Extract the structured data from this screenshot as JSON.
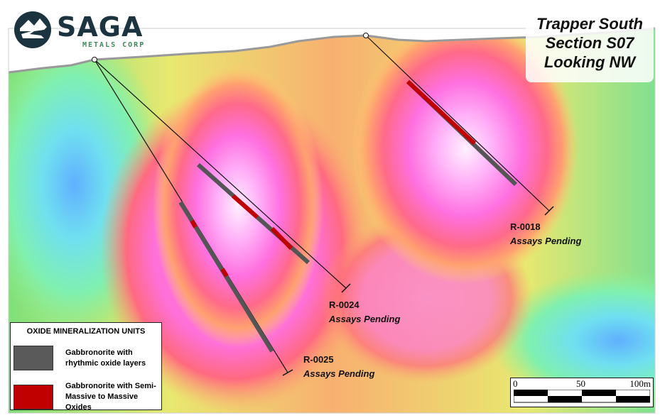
{
  "logo": {
    "word": "SAGA",
    "subtitle": "METALS CORP"
  },
  "title": {
    "line1": "Trapper South",
    "line2": "Section S07",
    "line3": "Looking NW"
  },
  "drill_holes": [
    {
      "id": "R-0018",
      "status": "Assays Pending"
    },
    {
      "id": "R-0024",
      "status": "Assays Pending"
    },
    {
      "id": "R-0025",
      "status": "Assays Pending"
    }
  ],
  "legend": {
    "title": "OXIDE MINERALIZATION UNITS",
    "items": [
      {
        "label": "Gabbronorite with rhythmic oxide layers",
        "color": "#5a5a5a"
      },
      {
        "label": "Gabbronorite with Semi-Massive to Massive Oxides",
        "color": "#c00000"
      }
    ]
  },
  "scale_bar": {
    "ticks": [
      "0",
      "50",
      "100m"
    ]
  }
}
